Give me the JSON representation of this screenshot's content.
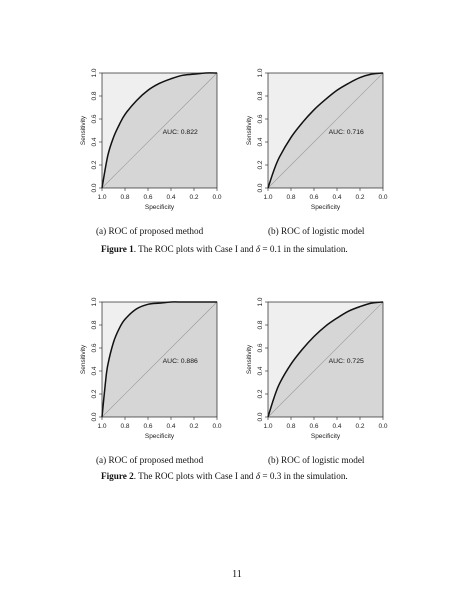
{
  "figures": [
    {
      "label": "Figure 1",
      "caption_prefix": ". The ROC plots with Case I and ",
      "delta_symbol": "δ",
      "caption_eq": " = 0.1",
      "caption_suffix": " in the simulation.",
      "panels": [
        {
          "subcaption": "(a) ROC of proposed method",
          "auc_label": "AUC: 0.822"
        },
        {
          "subcaption": "(b) ROC of logistic model",
          "auc_label": "AUC: 0.716"
        }
      ]
    },
    {
      "label": "Figure 2",
      "caption_prefix": ". The ROC plots with Case I and ",
      "delta_symbol": "δ",
      "caption_eq": " = 0.3",
      "caption_suffix": " in the simulation.",
      "panels": [
        {
          "subcaption": "(a) ROC of proposed method",
          "auc_label": "AUC: 0.886"
        },
        {
          "subcaption": "(b) ROC of logistic model",
          "auc_label": "AUC: 0.725"
        }
      ]
    }
  ],
  "chart_data": [
    {
      "type": "line",
      "xlabel": "Specificity",
      "ylabel": "Sensitivity",
      "xlim": [
        1.0,
        0.0
      ],
      "ylim": [
        0.0,
        1.0
      ],
      "x_ticks": [
        "1.0",
        "0.8",
        "0.6",
        "0.4",
        "0.2",
        "0.0"
      ],
      "y_ticks": [
        "0.0",
        "0.2",
        "0.4",
        "0.6",
        "0.8",
        "1.0"
      ],
      "auc": 0.822,
      "series": [
        {
          "x": [
            1.0,
            0.95,
            0.9,
            0.85,
            0.8,
            0.7,
            0.6,
            0.5,
            0.4,
            0.3,
            0.2,
            0.1,
            0.0
          ],
          "y": [
            0.0,
            0.28,
            0.44,
            0.55,
            0.64,
            0.76,
            0.85,
            0.91,
            0.95,
            0.98,
            0.99,
            1.0,
            1.0
          ]
        }
      ]
    },
    {
      "type": "line",
      "xlabel": "Specificity",
      "ylabel": "Sensitivity",
      "xlim": [
        1.0,
        0.0
      ],
      "ylim": [
        0.0,
        1.0
      ],
      "x_ticks": [
        "1.0",
        "0.8",
        "0.6",
        "0.4",
        "0.2",
        "0.0"
      ],
      "y_ticks": [
        "0.0",
        "0.2",
        "0.4",
        "0.6",
        "0.8",
        "1.0"
      ],
      "auc": 0.716,
      "series": [
        {
          "x": [
            1.0,
            0.95,
            0.9,
            0.8,
            0.7,
            0.6,
            0.5,
            0.4,
            0.3,
            0.2,
            0.1,
            0.0
          ],
          "y": [
            0.0,
            0.15,
            0.27,
            0.44,
            0.57,
            0.68,
            0.77,
            0.85,
            0.91,
            0.96,
            0.99,
            1.0
          ]
        }
      ]
    },
    {
      "type": "line",
      "xlabel": "Specificity",
      "ylabel": "Sensitivity",
      "xlim": [
        1.0,
        0.0
      ],
      "ylim": [
        0.0,
        1.0
      ],
      "x_ticks": [
        "1.0",
        "0.8",
        "0.6",
        "0.4",
        "0.2",
        "0.0"
      ],
      "y_ticks": [
        "0.0",
        "0.2",
        "0.4",
        "0.6",
        "0.8",
        "1.0"
      ],
      "auc": 0.886,
      "series": [
        {
          "x": [
            1.0,
            0.97,
            0.95,
            0.9,
            0.85,
            0.8,
            0.7,
            0.6,
            0.5,
            0.4,
            0.3,
            0.2,
            0.1,
            0.0
          ],
          "y": [
            0.0,
            0.3,
            0.45,
            0.65,
            0.77,
            0.85,
            0.94,
            0.98,
            0.99,
            1.0,
            1.0,
            1.0,
            1.0,
            1.0
          ]
        }
      ]
    },
    {
      "type": "line",
      "xlabel": "Specificity",
      "ylabel": "Sensitivity",
      "xlim": [
        1.0,
        0.0
      ],
      "ylim": [
        0.0,
        1.0
      ],
      "x_ticks": [
        "1.0",
        "0.8",
        "0.6",
        "0.4",
        "0.2",
        "0.0"
      ],
      "y_ticks": [
        "0.0",
        "0.2",
        "0.4",
        "0.6",
        "0.8",
        "1.0"
      ],
      "auc": 0.725,
      "series": [
        {
          "x": [
            1.0,
            0.95,
            0.9,
            0.8,
            0.7,
            0.6,
            0.5,
            0.4,
            0.3,
            0.2,
            0.1,
            0.0
          ],
          "y": [
            0.0,
            0.16,
            0.29,
            0.46,
            0.59,
            0.7,
            0.79,
            0.86,
            0.92,
            0.96,
            0.99,
            1.0
          ]
        }
      ]
    }
  ],
  "page_number": "11"
}
